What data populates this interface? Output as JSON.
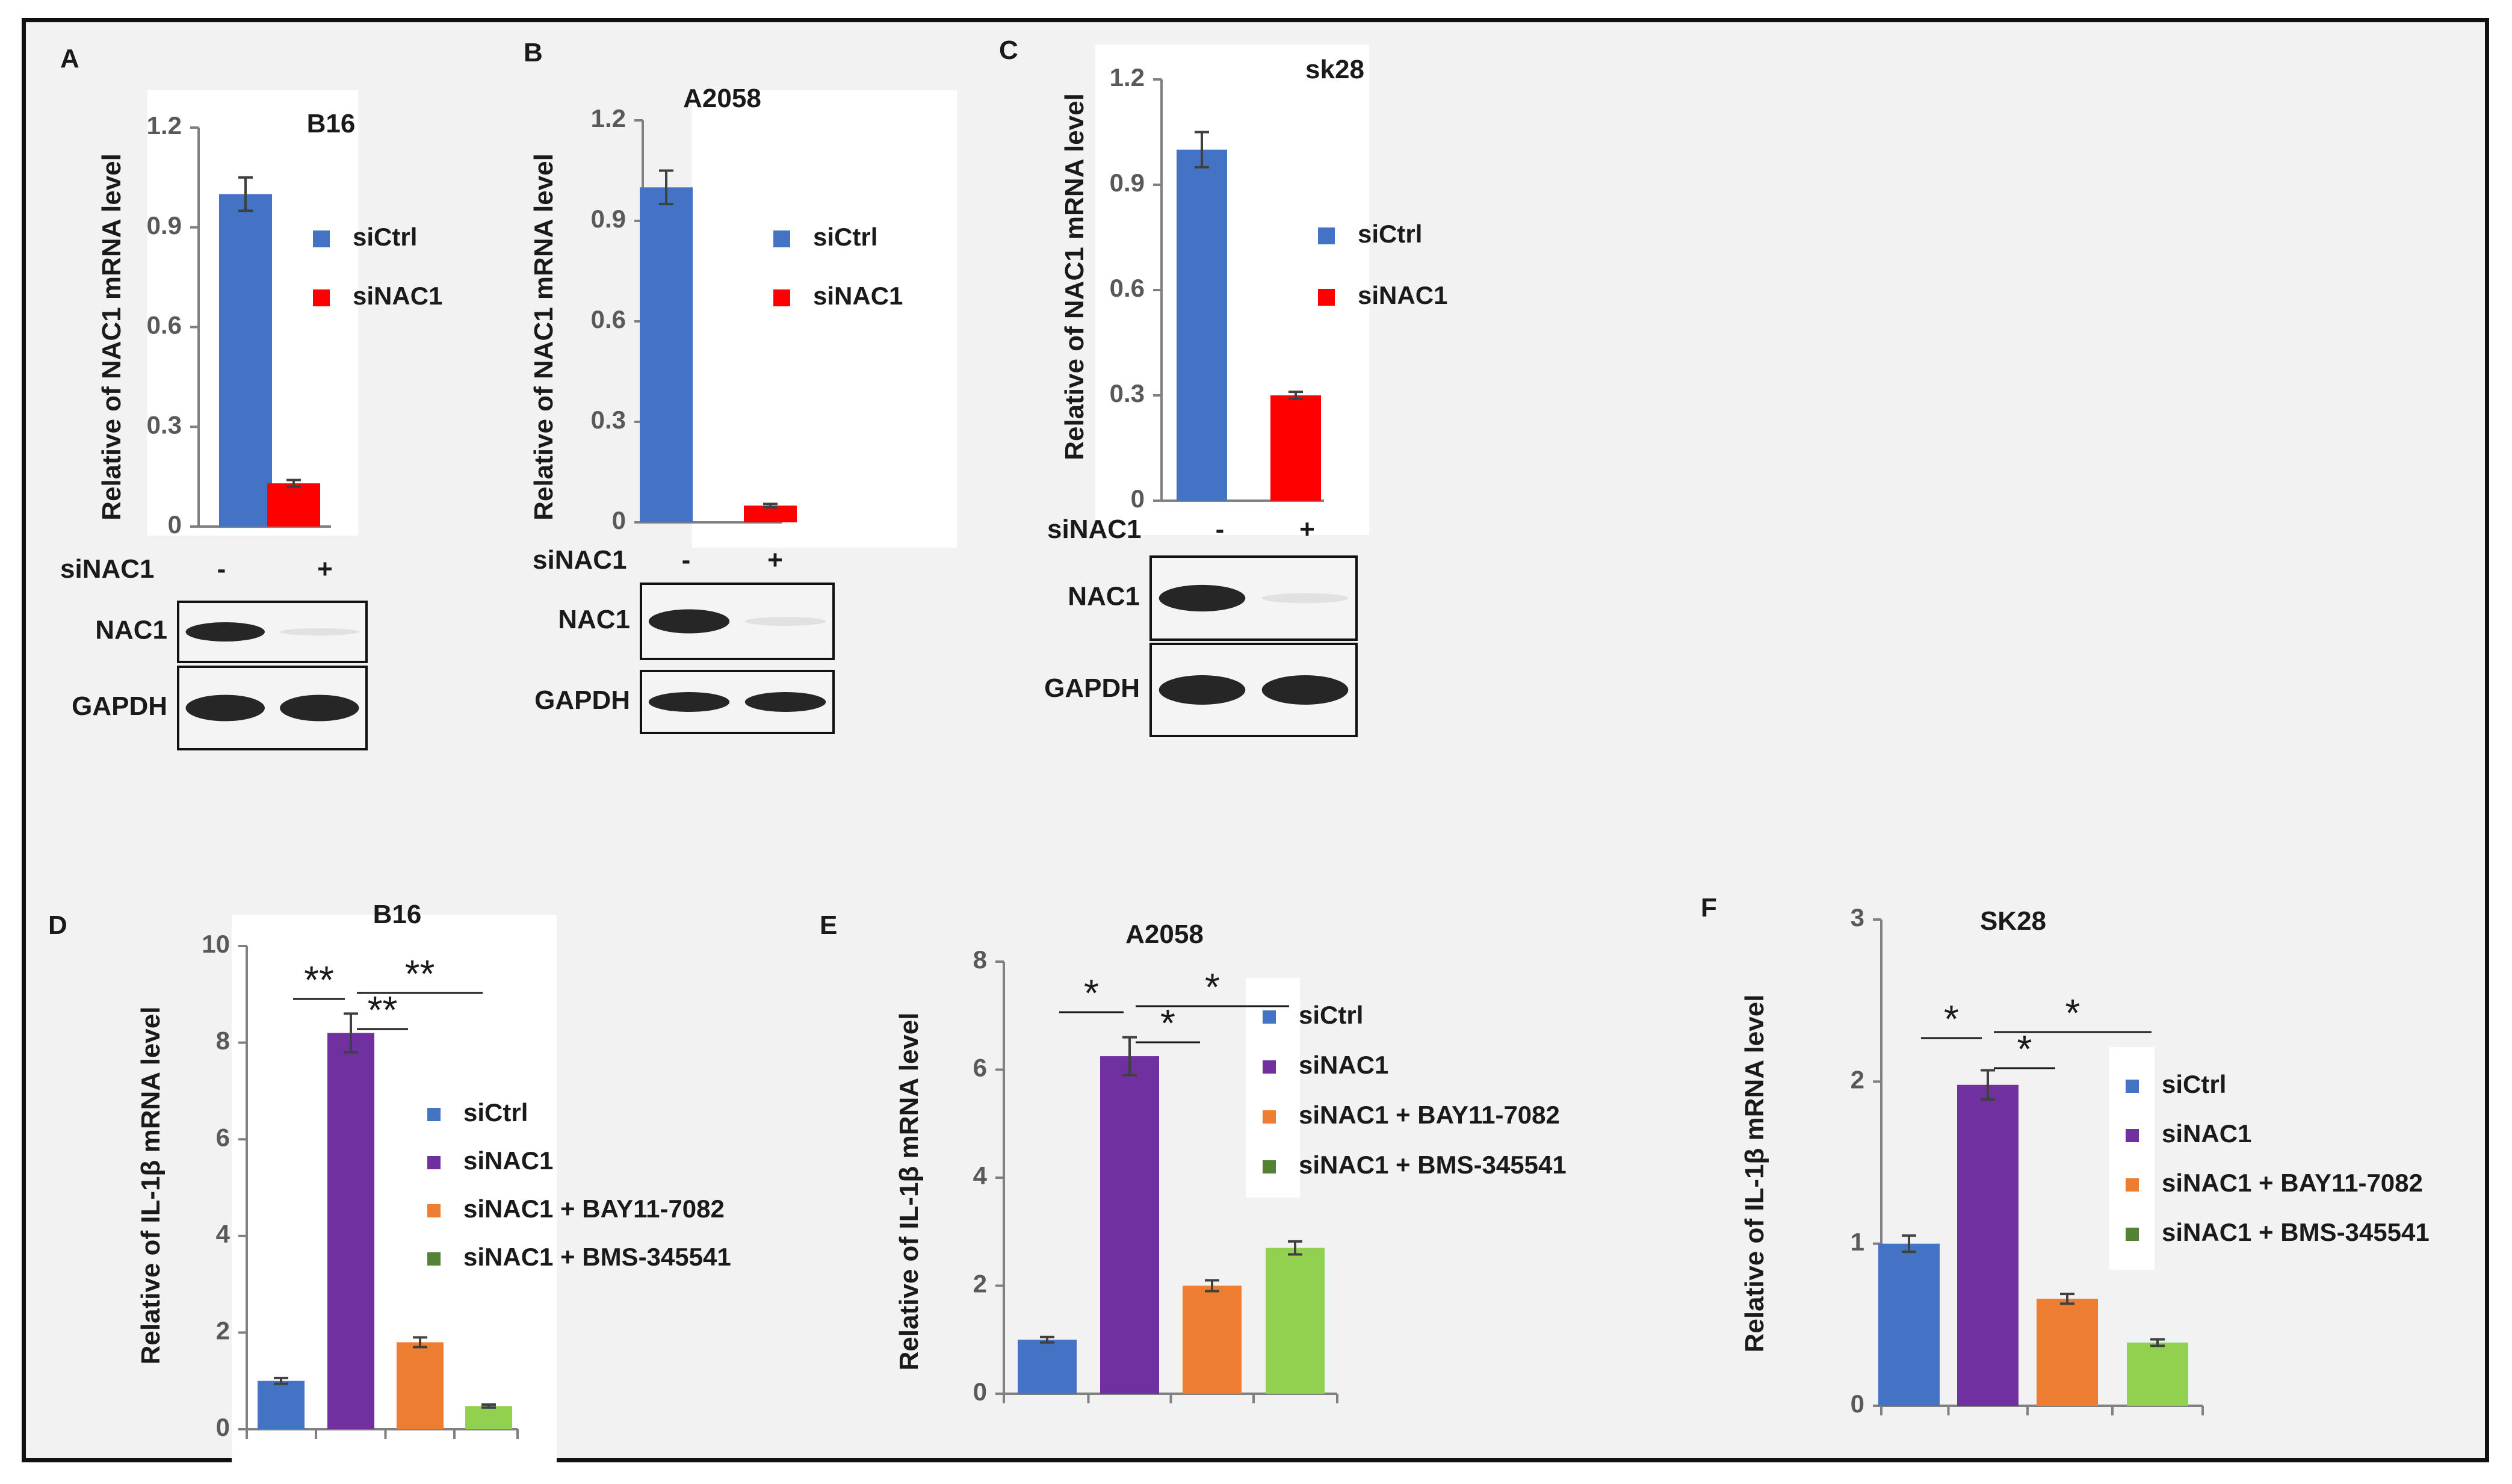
{
  "colors": {
    "siCtrl": "#4472c4",
    "siNAC1": "#ff0000",
    "purple": "#7030a0",
    "orange": "#ed7d31",
    "green": "#92d050",
    "green_legend": "#548235",
    "axis": "#808080",
    "text": "#1a1a1a",
    "ticktext": "#595959",
    "panel_bg": "#ffffff"
  },
  "chart_data": [
    {
      "panel": "A",
      "type": "bar",
      "title": "B16",
      "ylabel": "Relative of NAC1 mRNA level",
      "ylim": [
        0,
        1.2
      ],
      "yticks": [
        "0",
        "0.3",
        "0.6",
        "0.9",
        "1.2"
      ],
      "categories": [
        "-",
        "+"
      ],
      "values": [
        1.0,
        0.13
      ],
      "errors": [
        0.05,
        0.01
      ],
      "bar_colors": [
        "#4472c4",
        "#ff0000"
      ],
      "legend": [
        {
          "label": "siCtrl",
          "color": "#4472c4"
        },
        {
          "label": "siNAC1",
          "color": "#ff0000"
        }
      ],
      "blot": {
        "treatment_label": "siNAC1",
        "marks": [
          "-",
          "+"
        ],
        "rows": [
          "NAC1",
          "GAPDH"
        ]
      }
    },
    {
      "panel": "B",
      "type": "bar",
      "title": "A2058",
      "ylabel": "Relative of NAC1 mRNA level",
      "ylim": [
        0,
        1.2
      ],
      "yticks": [
        "0",
        "0.3",
        "0.6",
        "0.9",
        "1.2"
      ],
      "categories": [
        "-",
        "+"
      ],
      "values": [
        1.0,
        0.05
      ],
      "errors": [
        0.05,
        0.005
      ],
      "bar_colors": [
        "#4472c4",
        "#ff0000"
      ],
      "legend": [
        {
          "label": "siCtrl",
          "color": "#4472c4"
        },
        {
          "label": "siNAC1",
          "color": "#ff0000"
        }
      ],
      "blot": {
        "treatment_label": "siNAC1",
        "marks": [
          "-",
          "+"
        ],
        "rows": [
          "NAC1",
          "GAPDH"
        ]
      }
    },
    {
      "panel": "C",
      "type": "bar",
      "title": "sk28",
      "ylabel": "Relative of NAC1 mRNA level",
      "ylim": [
        0,
        1.2
      ],
      "yticks": [
        "0",
        "0.3",
        "0.6",
        "0.9",
        "1.2"
      ],
      "categories": [
        "-",
        "+"
      ],
      "values": [
        1.0,
        0.3
      ],
      "errors": [
        0.05,
        0.01
      ],
      "bar_colors": [
        "#4472c4",
        "#ff0000"
      ],
      "legend": [
        {
          "label": "siCtrl",
          "color": "#4472c4"
        },
        {
          "label": "siNAC1",
          "color": "#ff0000"
        }
      ],
      "blot": {
        "treatment_label": "siNAC1",
        "marks": [
          "-",
          "+"
        ],
        "rows": [
          "NAC1",
          "GAPDH"
        ]
      }
    },
    {
      "panel": "D",
      "type": "bar",
      "title": "B16",
      "ylabel": "Relative of IL-1β mRNA level",
      "ylim": [
        0,
        10
      ],
      "yticks": [
        "0",
        "2",
        "4",
        "6",
        "8",
        "10"
      ],
      "categories": [
        "siCtrl",
        "siNAC1",
        "siNAC1 + BAY11-7082",
        "siNAC1 + BMS-345541"
      ],
      "values": [
        1.0,
        8.2,
        1.8,
        0.48
      ],
      "errors": [
        0.06,
        0.4,
        0.1,
        0.03
      ],
      "bar_colors": [
        "#4472c4",
        "#7030a0",
        "#ed7d31",
        "#92d050"
      ],
      "legend": [
        {
          "label": "siCtrl",
          "color": "#4472c4"
        },
        {
          "label": "siNAC1",
          "color": "#7030a0"
        },
        {
          "label": "siNAC1 + BAY11-7082",
          "color": "#ed7d31"
        },
        {
          "label": "siNAC1 + BMS-345541",
          "color": "#548235"
        }
      ],
      "significance": [
        {
          "from": 0,
          "to": 1,
          "label": "**"
        },
        {
          "from": 1,
          "to": 2,
          "label": "**"
        },
        {
          "from": 1,
          "to": 3,
          "label": "**"
        }
      ]
    },
    {
      "panel": "E",
      "type": "bar",
      "title": "A2058",
      "ylabel": "Relative of IL-1β mRNA level",
      "ylim": [
        0,
        8
      ],
      "yticks": [
        "0",
        "2",
        "4",
        "6",
        "8"
      ],
      "categories": [
        "siCtrl",
        "siNAC1",
        "siNAC1 + BAY11-7082",
        "siNAC1 + BMS-345541"
      ],
      "values": [
        1.0,
        6.25,
        2.0,
        2.7
      ],
      "errors": [
        0.05,
        0.35,
        0.1,
        0.12
      ],
      "bar_colors": [
        "#4472c4",
        "#7030a0",
        "#ed7d31",
        "#92d050"
      ],
      "legend": [
        {
          "label": "siCtrl",
          "color": "#4472c4"
        },
        {
          "label": "siNAC1",
          "color": "#7030a0"
        },
        {
          "label": "siNAC1 + BAY11-7082",
          "color": "#ed7d31"
        },
        {
          "label": "siNAC1 + BMS-345541",
          "color": "#548235"
        }
      ],
      "significance": [
        {
          "from": 0,
          "to": 1,
          "label": "*"
        },
        {
          "from": 1,
          "to": 2,
          "label": "*"
        },
        {
          "from": 1,
          "to": 3,
          "label": "*"
        }
      ]
    },
    {
      "panel": "F",
      "type": "bar",
      "title": "SK28",
      "ylabel": "Relative of IL-1β mRNA level",
      "ylim": [
        0,
        3
      ],
      "yticks": [
        "0",
        "1",
        "2",
        "3"
      ],
      "categories": [
        "siCtrl",
        "siNAC1",
        "siNAC1 + BAY11-7082",
        "siNAC1 + BMS-345541"
      ],
      "values": [
        1.0,
        1.98,
        0.66,
        0.39
      ],
      "errors": [
        0.05,
        0.09,
        0.03,
        0.02
      ],
      "bar_colors": [
        "#4472c4",
        "#7030a0",
        "#ed7d31",
        "#92d050"
      ],
      "legend": [
        {
          "label": "siCtrl",
          "color": "#4472c4"
        },
        {
          "label": "siNAC1",
          "color": "#7030a0"
        },
        {
          "label": "siNAC1 + BAY11-7082",
          "color": "#ed7d31"
        },
        {
          "label": "siNAC1 + BMS-345541",
          "color": "#548235"
        }
      ],
      "significance": [
        {
          "from": 0,
          "to": 1,
          "label": "*"
        },
        {
          "from": 1,
          "to": 2,
          "label": "*"
        },
        {
          "from": 1,
          "to": 3,
          "label": "*"
        }
      ]
    }
  ]
}
